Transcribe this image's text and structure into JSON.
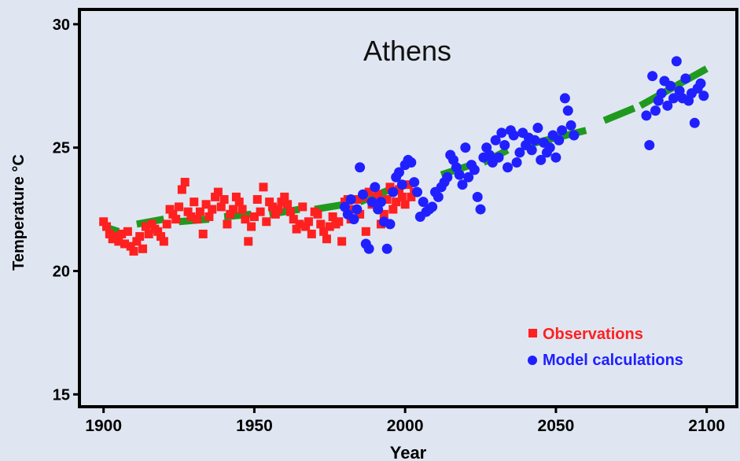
{
  "chart_data": {
    "type": "scatter",
    "title": "Athens",
    "xlabel": "Year",
    "ylabel": "Temperature °C",
    "xlim": [
      1892,
      2110
    ],
    "ylim": [
      14.5,
      30.6
    ],
    "x_ticks": [
      1900,
      1950,
      2000,
      2050,
      2100
    ],
    "x_tick_labels": [
      "1900",
      "1950",
      "2000",
      "2050",
      "2100"
    ],
    "y_ticks": [
      15,
      20,
      25,
      30
    ],
    "y_tick_labels": [
      "15",
      "20",
      "25",
      "30"
    ],
    "grid": false,
    "legend_position": "bottom-right",
    "colors": {
      "observations": "#ff2020",
      "model": "#2020ff",
      "trend": "#1f9a1f",
      "background": "#dfe6f1"
    },
    "series": [
      {
        "name": "Observations",
        "marker": "square",
        "points": [
          [
            1900,
            22.0
          ],
          [
            1901,
            21.8
          ],
          [
            1902,
            21.5
          ],
          [
            1903,
            21.3
          ],
          [
            1904,
            21.4
          ],
          [
            1905,
            21.2
          ],
          [
            1906,
            21.5
          ],
          [
            1907,
            21.1
          ],
          [
            1908,
            21.6
          ],
          [
            1909,
            21.0
          ],
          [
            1910,
            20.8
          ],
          [
            1911,
            21.2
          ],
          [
            1912,
            21.4
          ],
          [
            1913,
            20.9
          ],
          [
            1914,
            21.8
          ],
          [
            1915,
            21.5
          ],
          [
            1916,
            21.9
          ],
          [
            1917,
            21.7
          ],
          [
            1918,
            21.6
          ],
          [
            1919,
            21.4
          ],
          [
            1920,
            21.2
          ],
          [
            1921,
            21.9
          ],
          [
            1922,
            22.5
          ],
          [
            1923,
            22.3
          ],
          [
            1924,
            22.1
          ],
          [
            1925,
            22.6
          ],
          [
            1926,
            23.3
          ],
          [
            1927,
            23.6
          ],
          [
            1928,
            22.4
          ],
          [
            1929,
            22.2
          ],
          [
            1930,
            22.8
          ],
          [
            1931,
            22.1
          ],
          [
            1932,
            22.4
          ],
          [
            1933,
            21.5
          ],
          [
            1934,
            22.7
          ],
          [
            1935,
            22.2
          ],
          [
            1936,
            22.5
          ],
          [
            1937,
            23.0
          ],
          [
            1938,
            23.2
          ],
          [
            1939,
            22.6
          ],
          [
            1940,
            22.9
          ],
          [
            1941,
            21.9
          ],
          [
            1942,
            22.3
          ],
          [
            1943,
            22.5
          ],
          [
            1944,
            23.0
          ],
          [
            1945,
            22.8
          ],
          [
            1946,
            22.5
          ],
          [
            1947,
            22.1
          ],
          [
            1948,
            21.2
          ],
          [
            1949,
            21.8
          ],
          [
            1950,
            22.2
          ],
          [
            1951,
            22.9
          ],
          [
            1952,
            22.4
          ],
          [
            1953,
            23.4
          ],
          [
            1954,
            22.0
          ],
          [
            1955,
            22.8
          ],
          [
            1956,
            22.6
          ],
          [
            1957,
            22.3
          ],
          [
            1958,
            22.5
          ],
          [
            1959,
            22.8
          ],
          [
            1960,
            23.0
          ],
          [
            1961,
            22.7
          ],
          [
            1962,
            22.4
          ],
          [
            1963,
            22.1
          ],
          [
            1964,
            21.7
          ],
          [
            1965,
            21.9
          ],
          [
            1966,
            22.6
          ],
          [
            1967,
            21.8
          ],
          [
            1968,
            22.0
          ],
          [
            1969,
            21.5
          ],
          [
            1970,
            22.4
          ],
          [
            1971,
            22.3
          ],
          [
            1972,
            21.9
          ],
          [
            1973,
            21.6
          ],
          [
            1974,
            21.3
          ],
          [
            1975,
            21.8
          ],
          [
            1976,
            22.2
          ],
          [
            1977,
            21.9
          ],
          [
            1978,
            22.0
          ],
          [
            1979,
            21.2
          ],
          [
            1980,
            22.8
          ],
          [
            1981,
            22.9
          ],
          [
            1982,
            22.1
          ],
          [
            1983,
            22.5
          ],
          [
            1984,
            22.9
          ],
          [
            1985,
            22.3
          ],
          [
            1986,
            23.0
          ],
          [
            1987,
            21.6
          ],
          [
            1988,
            23.2
          ],
          [
            1989,
            22.7
          ],
          [
            1990,
            22.8
          ],
          [
            1991,
            23.1
          ],
          [
            1992,
            21.9
          ],
          [
            1993,
            22.3
          ],
          [
            1994,
            22.9
          ],
          [
            1995,
            23.4
          ],
          [
            1996,
            22.5
          ],
          [
            1997,
            22.8
          ],
          [
            1998,
            23.3
          ],
          [
            1999,
            23.0
          ],
          [
            2000,
            22.7
          ],
          [
            2001,
            23.5
          ],
          [
            2002,
            23.0
          ],
          [
            2003,
            23.2
          ]
        ]
      },
      {
        "name": "Model calculations",
        "marker": "circle",
        "points": [
          [
            1980,
            22.6
          ],
          [
            1981,
            22.3
          ],
          [
            1982,
            22.9
          ],
          [
            1983,
            22.1
          ],
          [
            1984,
            22.5
          ],
          [
            1985,
            24.2
          ],
          [
            1986,
            23.1
          ],
          [
            1987,
            21.1
          ],
          [
            1988,
            20.9
          ],
          [
            1989,
            22.8
          ],
          [
            1990,
            23.4
          ],
          [
            1991,
            22.5
          ],
          [
            1992,
            22.8
          ],
          [
            1993,
            22.0
          ],
          [
            1994,
            20.9
          ],
          [
            1995,
            21.9
          ],
          [
            1996,
            23.2
          ],
          [
            1997,
            23.8
          ],
          [
            1998,
            24.0
          ],
          [
            1999,
            23.5
          ],
          [
            2000,
            24.3
          ],
          [
            2001,
            24.5
          ],
          [
            2002,
            24.4
          ],
          [
            2003,
            23.6
          ],
          [
            2004,
            23.2
          ],
          [
            2005,
            22.2
          ],
          [
            2006,
            22.8
          ],
          [
            2007,
            22.4
          ],
          [
            2008,
            22.5
          ],
          [
            2009,
            22.6
          ],
          [
            2010,
            23.2
          ],
          [
            2011,
            23.0
          ],
          [
            2012,
            23.4
          ],
          [
            2013,
            23.6
          ],
          [
            2014,
            23.8
          ],
          [
            2015,
            24.7
          ],
          [
            2016,
            24.5
          ],
          [
            2017,
            24.2
          ],
          [
            2018,
            23.9
          ],
          [
            2019,
            23.5
          ],
          [
            2020,
            25.0
          ],
          [
            2021,
            23.8
          ],
          [
            2022,
            24.3
          ],
          [
            2023,
            24.1
          ],
          [
            2024,
            23.0
          ],
          [
            2025,
            22.5
          ],
          [
            2026,
            24.6
          ],
          [
            2027,
            25.0
          ],
          [
            2028,
            24.7
          ],
          [
            2029,
            24.4
          ],
          [
            2030,
            25.3
          ],
          [
            2031,
            24.6
          ],
          [
            2032,
            25.6
          ],
          [
            2033,
            25.1
          ],
          [
            2034,
            24.2
          ],
          [
            2035,
            25.7
          ],
          [
            2036,
            25.5
          ],
          [
            2037,
            24.4
          ],
          [
            2038,
            24.8
          ],
          [
            2039,
            25.6
          ],
          [
            2040,
            25.1
          ],
          [
            2041,
            25.4
          ],
          [
            2042,
            24.9
          ],
          [
            2043,
            25.3
          ],
          [
            2044,
            25.8
          ],
          [
            2045,
            24.5
          ],
          [
            2046,
            25.2
          ],
          [
            2047,
            24.8
          ],
          [
            2048,
            25.0
          ],
          [
            2049,
            25.5
          ],
          [
            2050,
            24.6
          ],
          [
            2051,
            25.3
          ],
          [
            2052,
            25.7
          ],
          [
            2053,
            27.0
          ],
          [
            2054,
            26.5
          ],
          [
            2055,
            25.9
          ],
          [
            2056,
            25.5
          ],
          [
            2080,
            26.3
          ],
          [
            2081,
            25.1
          ],
          [
            2082,
            27.9
          ],
          [
            2083,
            26.5
          ],
          [
            2084,
            26.9
          ],
          [
            2085,
            27.2
          ],
          [
            2086,
            27.7
          ],
          [
            2087,
            26.7
          ],
          [
            2088,
            27.5
          ],
          [
            2089,
            27.0
          ],
          [
            2090,
            28.5
          ],
          [
            2091,
            27.3
          ],
          [
            2092,
            27.0
          ],
          [
            2093,
            27.8
          ],
          [
            2094,
            26.9
          ],
          [
            2095,
            27.2
          ],
          [
            2096,
            26.0
          ],
          [
            2097,
            27.4
          ],
          [
            2098,
            27.6
          ],
          [
            2099,
            27.1
          ]
        ]
      },
      {
        "name": "",
        "marker": "dashed-line",
        "points": [
          [
            1900,
            21.8
          ],
          [
            2100,
            28.2
          ]
        ]
      }
    ],
    "trend_segments": [
      [
        [
          1900,
          21.8
        ],
        [
          1905,
          21.6
        ]
      ],
      [
        [
          1911,
          21.9
        ],
        [
          1920,
          22.1
        ]
      ],
      [
        [
          1925,
          22.0
        ],
        [
          1935,
          22.1
        ]
      ],
      [
        [
          1940,
          22.2
        ],
        [
          1949,
          22.3
        ]
      ],
      [
        [
          1955,
          22.3
        ],
        [
          1965,
          22.5
        ]
      ],
      [
        [
          1970,
          22.5
        ],
        [
          1980,
          22.7
        ]
      ],
      [
        [
          1985,
          22.8
        ],
        [
          1995,
          23.3
        ]
      ],
      [
        [
          1998,
          23.4
        ],
        [
          2004,
          23.6
        ]
      ],
      [
        [
          2012,
          23.9
        ],
        [
          2022,
          24.3
        ]
      ],
      [
        [
          2026,
          24.4
        ],
        [
          2034,
          24.9
        ]
      ],
      [
        [
          2040,
          25.1
        ],
        [
          2060,
          25.7
        ]
      ],
      [
        [
          2066,
          26.1
        ],
        [
          2076,
          26.6
        ]
      ],
      [
        [
          2078,
          26.7
        ],
        [
          2100,
          28.2
        ]
      ]
    ],
    "legend": [
      {
        "label": "Observations",
        "marker": "square"
      },
      {
        "label": "Model calculations",
        "marker": "circle"
      }
    ]
  }
}
